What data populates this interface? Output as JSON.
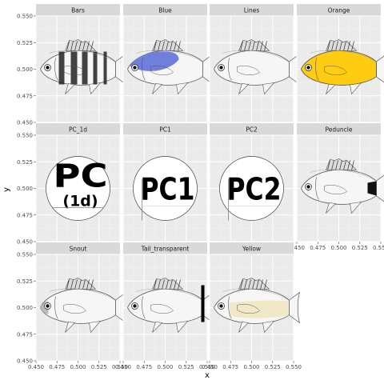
{
  "chart_data": {
    "type": "scatter",
    "xlabel": "x",
    "ylabel": "y",
    "xlim": [
      0.45,
      0.55
    ],
    "ylim": [
      0.45,
      0.55
    ],
    "x_ticks": [
      "0.450",
      "0.475",
      "0.500",
      "0.525",
      "0.550"
    ],
    "y_ticks": [
      "0.450",
      "0.475",
      "0.500",
      "0.525",
      "0.550"
    ],
    "grid": true,
    "facets": [
      {
        "label": "Bars",
        "x": 0.5,
        "y": 0.5,
        "image": "fish-bars"
      },
      {
        "label": "Blue",
        "x": 0.5,
        "y": 0.5,
        "image": "fish-blue"
      },
      {
        "label": "Lines",
        "x": 0.5,
        "y": 0.5,
        "image": "fish-lines"
      },
      {
        "label": "Orange",
        "x": 0.5,
        "y": 0.5,
        "image": "fish-orange"
      },
      {
        "label": "PC_1d",
        "x": 0.5,
        "y": 0.5,
        "image": "badge",
        "badge_text": "PC",
        "badge_sub": "(1d)"
      },
      {
        "label": "PC1",
        "x": 0.5,
        "y": 0.5,
        "image": "badge",
        "badge_text": "PC1"
      },
      {
        "label": "PC2",
        "x": 0.5,
        "y": 0.5,
        "image": "badge",
        "badge_text": "PC2"
      },
      {
        "label": "Peduncle",
        "x": 0.5,
        "y": 0.5,
        "image": "fish-peduncle"
      },
      {
        "label": "Snout",
        "x": 0.5,
        "y": 0.5,
        "image": "fish-snout"
      },
      {
        "label": "Tail_transparent",
        "x": 0.5,
        "y": 0.5,
        "image": "fish-tail"
      },
      {
        "label": "Yellow",
        "x": 0.5,
        "y": 0.5,
        "image": "fish-yellow"
      }
    ]
  },
  "colors": {
    "panel_bg": "#ebebeb",
    "grid_major": "#ffffff",
    "strip_bg": "#d9d9d9",
    "blue": "#6f7fdb",
    "orange": "#ffcc11",
    "yellow": "#efe7c4",
    "fish_body": "#f6f6f6",
    "fish_outline": "#555555"
  }
}
